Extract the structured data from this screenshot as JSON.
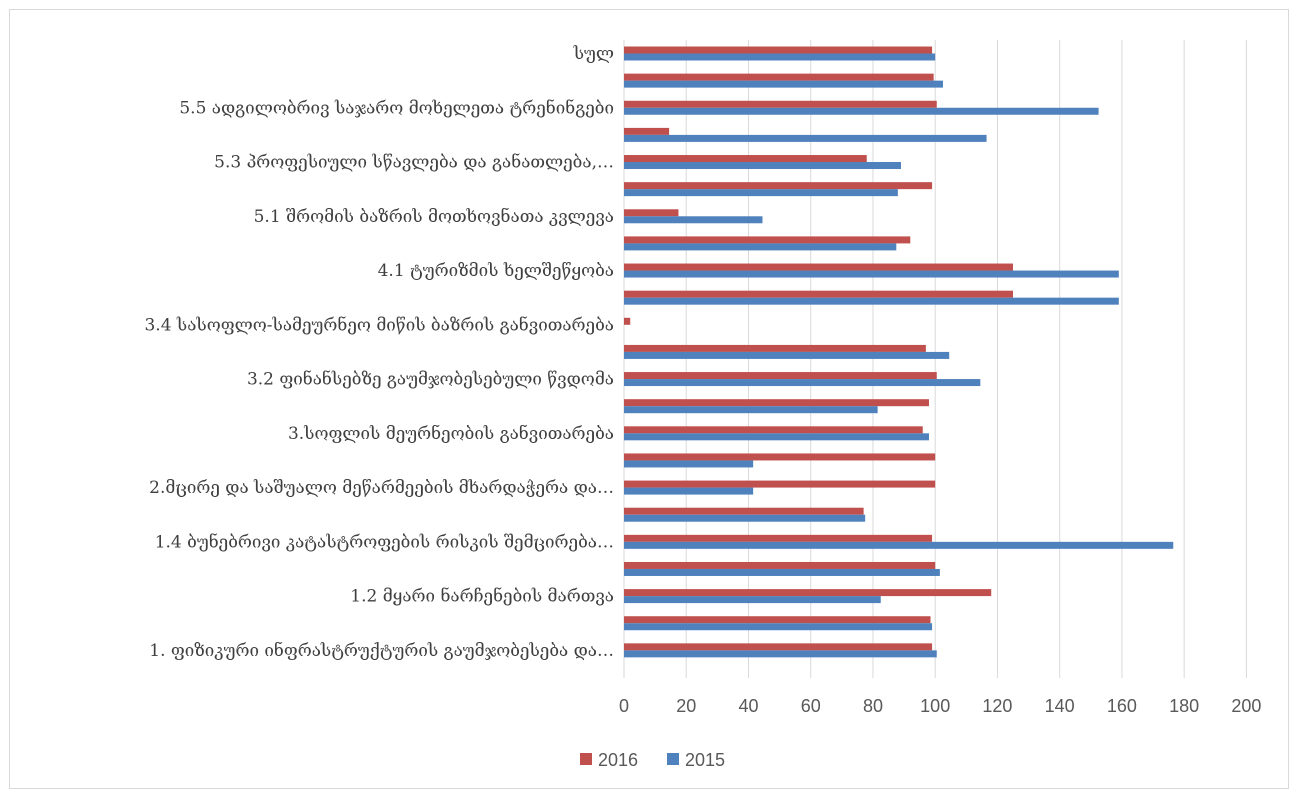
{
  "chart_data": {
    "type": "bar",
    "orientation": "horizontal",
    "categories": [
      "სულ",
      "",
      "5.5 ადგილობრივ საჯარო მოხელეთა ტრენინგები",
      "",
      "5.3 პროფესიული სწავლება და განათლება,…",
      "",
      "5.1 შრომის ბაზრის მოთხოვნათა კვლევა",
      "",
      "4.1 ტურიზმის ხელშეწყობა",
      "",
      "3.4 სასოფლო-სამეურნეო მიწის ბაზრის განვითარება",
      "",
      "3.2 ფინანსებზე გაუმჯობესებული წვდომა",
      "",
      "3.სოფლის მეურნეობის განვითარება",
      "",
      "2.მცირე და საშუალო მეწარმეების მხარდაჭერა და…",
      "",
      "1.4 ბუნებრივი კატასტროფების რისკის შემცირება…",
      "",
      "1.2 მყარი ნარჩენების მართვა",
      "",
      "1. ფიზიკური ინფრასტრუქტურის გაუმჯობესება და…"
    ],
    "series": [
      {
        "name": "2016",
        "color": "#c0504d",
        "values": [
          99,
          99.5,
          100.5,
          14.5,
          78,
          99,
          17.5,
          92,
          125,
          125,
          2,
          97,
          100.5,
          98,
          96,
          100,
          100,
          77,
          99,
          100,
          118,
          98.5,
          99
        ]
      },
      {
        "name": "2015",
        "color": "#4f81bd",
        "values": [
          100,
          102.5,
          152.5,
          116.5,
          89,
          88,
          44.5,
          87.5,
          159,
          159,
          0,
          104.5,
          114.5,
          81.5,
          98,
          41.5,
          41.5,
          77.5,
          176.5,
          101.5,
          82.5,
          99,
          100.5
        ]
      }
    ],
    "xlim": [
      0,
      200
    ],
    "xticks": [
      "0",
      "20",
      "40",
      "60",
      "80",
      "100",
      "120",
      "140",
      "160",
      "180",
      "200"
    ],
    "grid": true,
    "legend_position": "bottom",
    "legend": [
      "2016",
      "2015"
    ]
  }
}
